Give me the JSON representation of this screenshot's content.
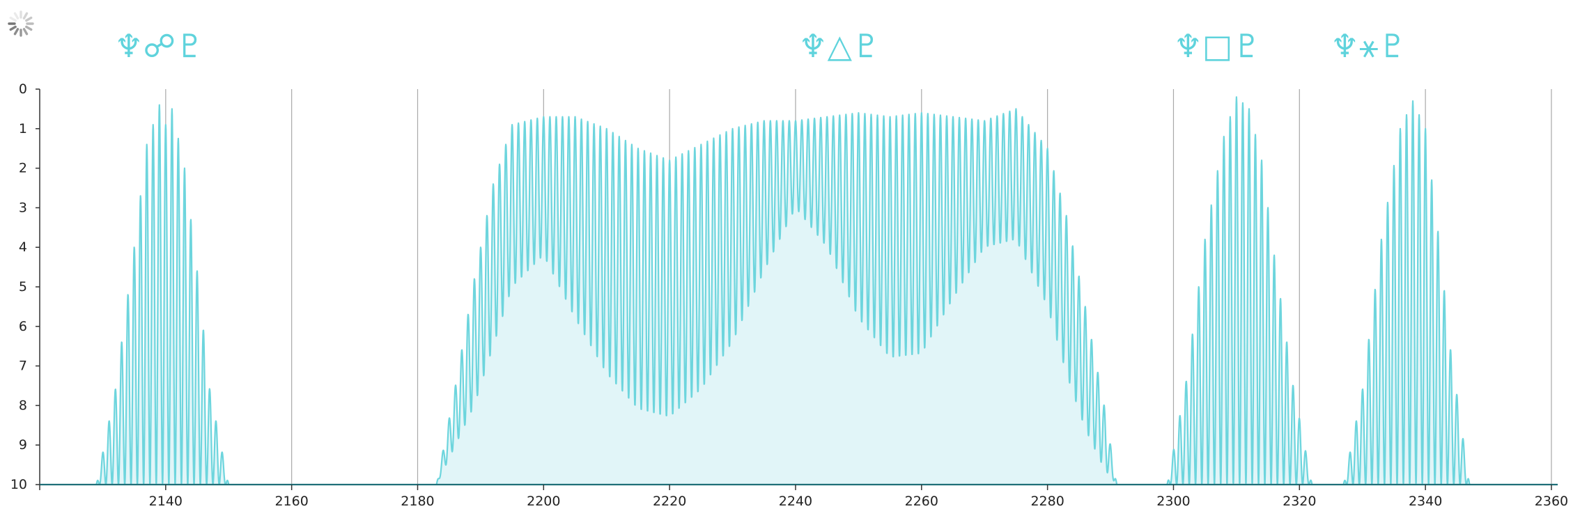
{
  "loading_icon": "spinner-icon",
  "chart_data": {
    "type": "area",
    "title": "",
    "xlabel": "",
    "ylabel": "",
    "xlim": [
      2120,
      2361
    ],
    "ylim": [
      0,
      10
    ],
    "y_inverted": true,
    "x_ticks": [
      2140,
      2160,
      2180,
      2200,
      2220,
      2240,
      2260,
      2280,
      2300,
      2320,
      2340,
      2360
    ],
    "y_ticks": [
      0,
      1,
      2,
      3,
      4,
      5,
      6,
      7,
      8,
      9,
      10
    ],
    "grid": "vertical",
    "colors": {
      "line": "#6dd5dd",
      "fill": "#e1f5f8",
      "grid": "#a8a8a8",
      "axis": "#333333",
      "baseline": "#1f6f78"
    },
    "aspects": [
      {
        "label": "♆☍♇",
        "x": 2139
      },
      {
        "label": "♆△♇",
        "x": 2247
      },
      {
        "label": "♆□♇",
        "x": 2307
      },
      {
        "label": "♆⚹♇",
        "x": 2331
      }
    ],
    "series": [
      {
        "x": [
          2129,
          2132,
          2135,
          2137,
          2139,
          2140,
          2141,
          2143,
          2145,
          2147,
          2150
        ],
        "y": [
          10,
          7.6,
          4.0,
          1.4,
          0.4,
          0.9,
          0.5,
          2.0,
          4.6,
          7.6,
          10
        ]
      },
      {
        "x": [
          2183,
          2186,
          2189,
          2192,
          2195,
          2200,
          2205,
          2210,
          2215,
          2220,
          2225,
          2230,
          2235,
          2240,
          2245,
          2250,
          2255,
          2260,
          2265,
          2270,
          2275,
          2280,
          2283,
          2286,
          2289,
          2291
        ],
        "y": [
          10,
          7.5,
          4.8,
          2.4,
          0.9,
          0.7,
          0.7,
          1.0,
          1.5,
          1.8,
          1.4,
          1.0,
          0.8,
          0.8,
          0.7,
          0.6,
          0.7,
          0.6,
          0.7,
          0.8,
          0.5,
          1.5,
          3.2,
          5.5,
          8.0,
          10
        ],
        "y_trough": [
          10,
          9.0,
          8.0,
          6.5,
          5.0,
          4.2,
          5.8,
          7.2,
          8.1,
          8.3,
          7.6,
          6.4,
          4.6,
          3.0,
          4.0,
          5.8,
          6.8,
          6.7,
          5.3,
          4.0,
          3.8,
          5.5,
          7.2,
          8.6,
          9.6,
          10
        ]
      },
      {
        "x": [
          2299,
          2302,
          2305,
          2308,
          2310,
          2312,
          2314,
          2316,
          2319,
          2322
        ],
        "y": [
          10,
          7.4,
          3.8,
          1.2,
          0.2,
          0.5,
          1.8,
          4.2,
          7.5,
          10
        ]
      },
      {
        "x": [
          2327,
          2330,
          2333,
          2336,
          2338,
          2340,
          2342,
          2344,
          2347
        ],
        "y": [
          10,
          7.6,
          3.8,
          1.0,
          0.3,
          1.0,
          3.6,
          6.6,
          10
        ]
      }
    ]
  }
}
